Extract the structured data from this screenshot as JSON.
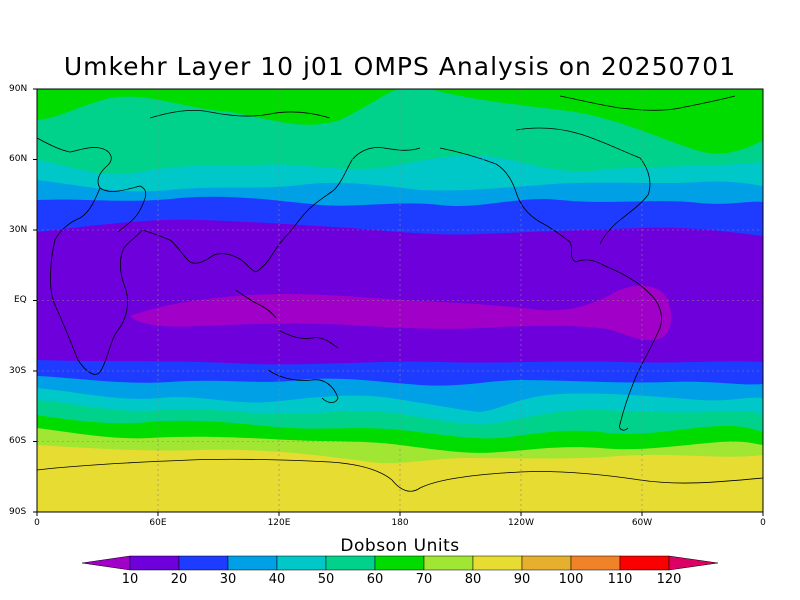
{
  "title": "Umkehr Layer 10 j01 OMPS Analysis on 20250701",
  "lat_labels": [
    "90N",
    "60N",
    "30N",
    "EQ",
    "30S",
    "60S",
    "90S"
  ],
  "lon_labels": [
    "0",
    "60E",
    "120E",
    "180",
    "120W",
    "60W",
    "0"
  ],
  "colorbar": {
    "title": "Dobson Units",
    "labels": [
      "10",
      "20",
      "30",
      "40",
      "50",
      "60",
      "70",
      "80",
      "90",
      "100",
      "110",
      "120"
    ],
    "colors": [
      "#a000c8",
      "#6e00dc",
      "#1e3cff",
      "#00a0e6",
      "#00c8c8",
      "#00d28c",
      "#00dc00",
      "#a0e632",
      "#e6dc32",
      "#e6af2d",
      "#f08228",
      "#fa0000",
      "#dc0064"
    ]
  },
  "chart_data": {
    "type": "heatmap",
    "title": "Umkehr Layer 10 j01 OMPS Analysis on 20250701",
    "xlim": [
      0,
      360
    ],
    "ylim": [
      -90,
      90
    ],
    "x_ticks": [
      "0",
      "60E",
      "120E",
      "180",
      "120W",
      "60W",
      "0"
    ],
    "y_ticks": [
      "90N",
      "60N",
      "30N",
      "EQ",
      "30S",
      "60S",
      "90S"
    ],
    "grid": true,
    "legend": "bottom",
    "unit": "Dobson Units",
    "levels": [
      10,
      20,
      30,
      40,
      50,
      60,
      70,
      80,
      90,
      100,
      110,
      120
    ],
    "zonal_profile": [
      {
        "lat": 90,
        "level": 60
      },
      {
        "lat": 70,
        "level": 60
      },
      {
        "lat": 60,
        "level": 50
      },
      {
        "lat": 50,
        "level": 40
      },
      {
        "lat": 40,
        "level": 30
      },
      {
        "lat": 30,
        "level": 20
      },
      {
        "lat": 0,
        "level": 10
      },
      {
        "lat": -30,
        "level": 20
      },
      {
        "lat": -40,
        "level": 30
      },
      {
        "lat": -48,
        "level": 50
      },
      {
        "lat": -55,
        "level": 60
      },
      {
        "lat": -62,
        "level": 70
      },
      {
        "lat": -70,
        "level": 80
      },
      {
        "lat": -90,
        "level": 80
      }
    ]
  }
}
